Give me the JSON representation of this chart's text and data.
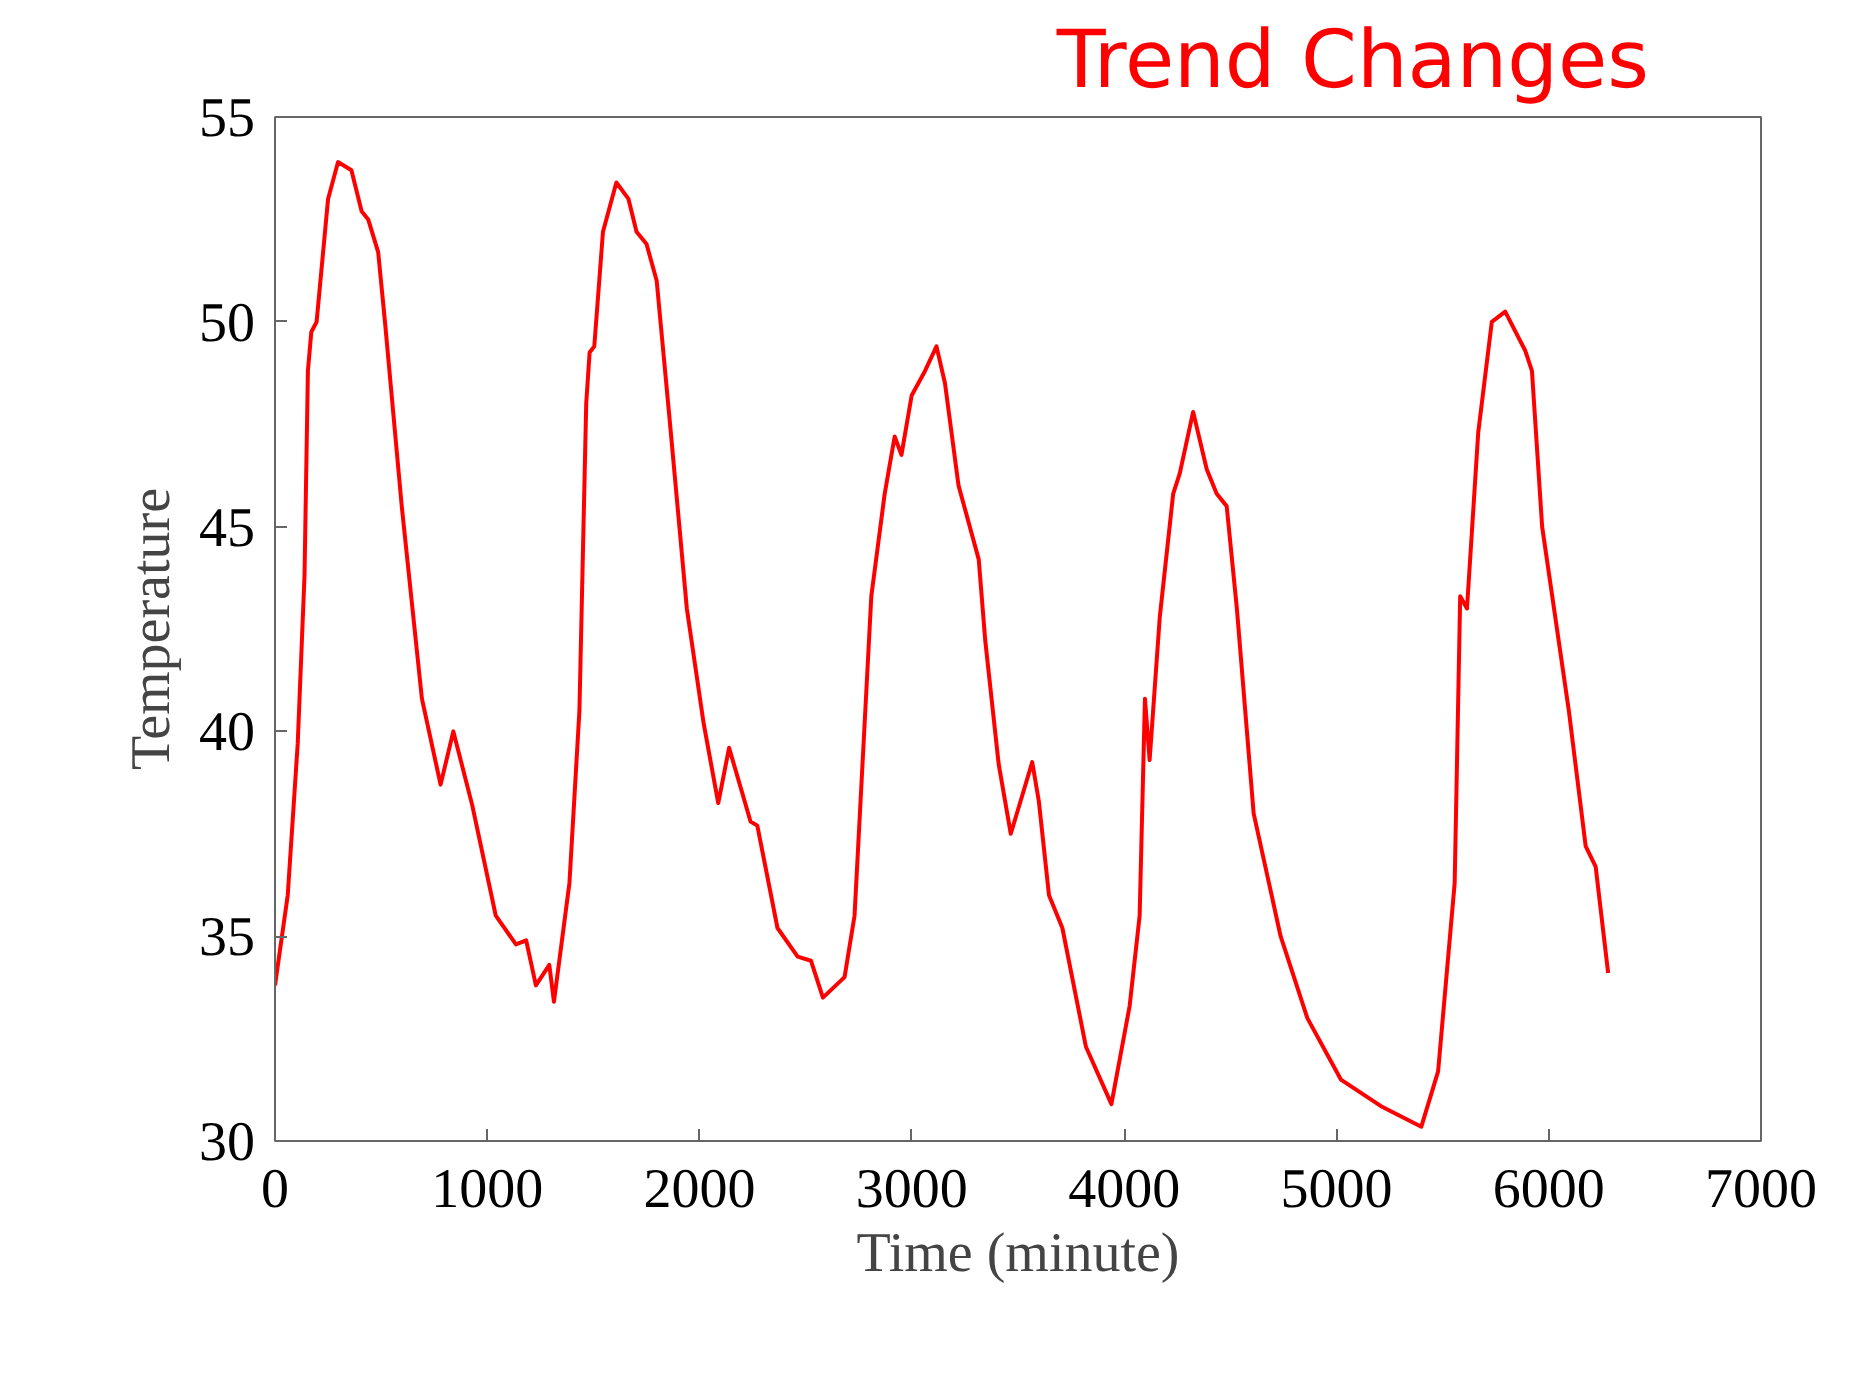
{
  "chart_data": {
    "type": "line",
    "xlabel": "Time (minute)",
    "ylabel": "Temperature",
    "annotations": [
      "Trend Changes"
    ],
    "xlim": [
      0,
      7000
    ],
    "xticks": [
      0,
      1000,
      2000,
      3000,
      4000,
      5000,
      6000,
      7000
    ],
    "ylim": [
      30,
      55
    ],
    "yticks": [
      30,
      35,
      40,
      45,
      50,
      55
    ],
    "grid": false,
    "marker": "none",
    "line_style": "solid",
    "series": [
      {
        "color": "#ff0000",
        "x": [
          0,
          60,
          107,
          139,
          155,
          171,
          196,
          250,
          297,
          360,
          408,
          439,
          486,
          518,
          597,
          692,
          780,
          840,
          929,
          1040,
          1135,
          1183,
          1229,
          1292,
          1314,
          1387,
          1434,
          1466,
          1482,
          1504,
          1545,
          1608,
          1665,
          1703,
          1750,
          1798,
          1861,
          1940,
          2019,
          2088,
          2139,
          2240,
          2272,
          2367,
          2462,
          2525,
          2581,
          2683,
          2730,
          2809,
          2872,
          2919,
          2951,
          2999,
          3062,
          3116,
          3156,
          3220,
          3315,
          3346,
          3409,
          3466,
          3567,
          3598,
          3646,
          3709,
          3820,
          3940,
          4026,
          4073,
          4098,
          4120,
          4168,
          4231,
          4262,
          4325,
          4389,
          4436,
          4483,
          4531,
          4610,
          4737,
          4863,
          5021,
          5210,
          5400,
          5479,
          5557,
          5583,
          5615,
          5668,
          5732,
          5795,
          5889,
          5921,
          5969,
          6095,
          6174,
          6221,
          6280
        ],
        "values": [
          33.8,
          36.0,
          39.7,
          43.8,
          48.8,
          49.75,
          50.0,
          53.0,
          53.9,
          53.7,
          52.7,
          52.5,
          51.7,
          50.0,
          45.5,
          40.8,
          38.7,
          40.0,
          38.2,
          35.5,
          34.8,
          34.9,
          33.8,
          34.3,
          33.4,
          36.3,
          40.5,
          48.0,
          49.25,
          49.4,
          52.2,
          53.4,
          53.0,
          52.2,
          51.9,
          51.0,
          47.5,
          43.0,
          40.2,
          38.25,
          39.6,
          37.8,
          37.7,
          35.2,
          34.5,
          34.4,
          33.5,
          34.0,
          35.5,
          43.3,
          45.8,
          47.2,
          46.75,
          48.2,
          48.8,
          49.4,
          48.5,
          46.0,
          44.2,
          42.2,
          39.2,
          37.5,
          39.25,
          38.3,
          36.0,
          35.2,
          32.3,
          30.9,
          33.3,
          35.5,
          40.8,
          39.3,
          42.8,
          45.8,
          46.3,
          47.8,
          46.4,
          45.8,
          45.5,
          43.0,
          38.0,
          35.0,
          33.0,
          31.5,
          30.85,
          30.35,
          31.7,
          36.3,
          43.3,
          43.0,
          47.3,
          50.0,
          50.25,
          49.3,
          48.8,
          45.0,
          40.5,
          37.2,
          36.7,
          34.1
        ]
      }
    ]
  }
}
